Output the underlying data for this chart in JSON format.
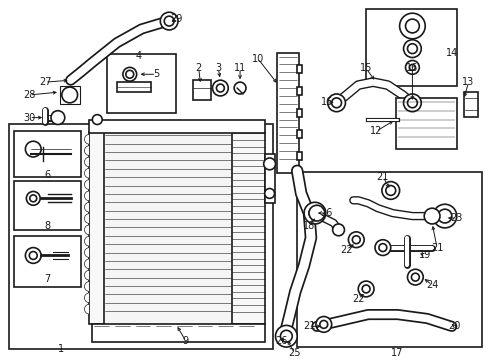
{
  "bg_color": "#ffffff",
  "line_color": "#1a1a1a",
  "fig_width": 4.89,
  "fig_height": 3.6,
  "dpi": 100,
  "lw_main": 1.2,
  "lw_thin": 0.6,
  "lw_hose": 3.0,
  "fs": 7.0
}
